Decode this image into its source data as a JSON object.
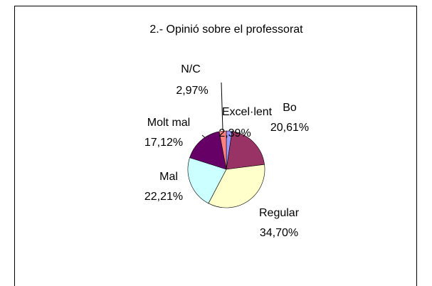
{
  "chart_data": {
    "type": "pie",
    "title": "2.- Opinió sobre el professorat",
    "categories": [
      "Excel·lent",
      "Bo",
      "Regular",
      "Mal",
      "Molt mal",
      "N/C"
    ],
    "values": [
      2.39,
      20.61,
      34.7,
      22.21,
      17.12,
      2.97
    ],
    "value_labels": [
      "2,39%",
      "20,61%",
      "34,70%",
      "22,21%",
      "17,12%",
      "2,97%"
    ],
    "colors": [
      "#9999ff",
      "#993366",
      "#ffffcc",
      "#ccffff",
      "#660066",
      "#ff8080"
    ]
  }
}
